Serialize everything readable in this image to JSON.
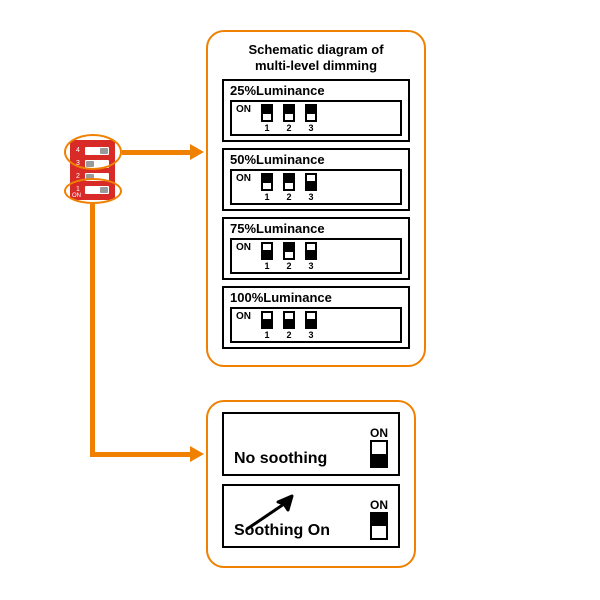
{
  "colors": {
    "accent": "#f08000",
    "dip_bg": "#d82b27",
    "line": "#000000",
    "page_bg": "#ffffff"
  },
  "dip_switch": {
    "rows": [
      {
        "num": "4",
        "pos": "right"
      },
      {
        "num": "3",
        "pos": "left"
      },
      {
        "num": "2",
        "pos": "left"
      },
      {
        "num": "1",
        "pos": "right"
      }
    ],
    "on_text": "ON"
  },
  "top_panel": {
    "title_l1": "Schematic diagram of",
    "title_l2": "multi-level dimming",
    "boxes": [
      {
        "title": "25%Luminance",
        "on": "ON",
        "switches": [
          {
            "n": "1",
            "pos": "up"
          },
          {
            "n": "2",
            "pos": "up"
          },
          {
            "n": "3",
            "pos": "up"
          }
        ]
      },
      {
        "title": "50%Luminance",
        "on": "ON",
        "switches": [
          {
            "n": "1",
            "pos": "up"
          },
          {
            "n": "2",
            "pos": "up"
          },
          {
            "n": "3",
            "pos": "down"
          }
        ]
      },
      {
        "title": "75%Luminance",
        "on": "ON",
        "switches": [
          {
            "n": "1",
            "pos": "down"
          },
          {
            "n": "2",
            "pos": "up"
          },
          {
            "n": "3",
            "pos": "down"
          }
        ]
      },
      {
        "title": "100%Luminance",
        "on": "ON",
        "switches": [
          {
            "n": "1",
            "pos": "down"
          },
          {
            "n": "2",
            "pos": "down"
          },
          {
            "n": "3",
            "pos": "down"
          }
        ]
      }
    ]
  },
  "bottom_panel": {
    "boxes": [
      {
        "label": "No soothing",
        "on": "ON",
        "pos": "down",
        "arrow": false
      },
      {
        "label": "Soothing On",
        "on": "ON",
        "pos": "up",
        "arrow": true
      }
    ]
  }
}
